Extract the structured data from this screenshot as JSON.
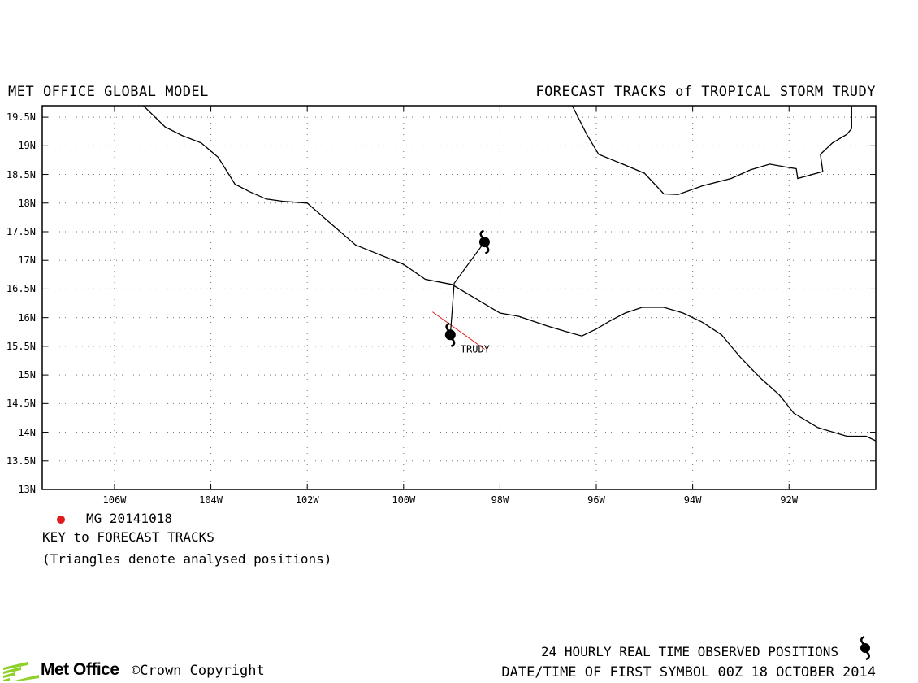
{
  "header": {
    "left": "MET OFFICE GLOBAL MODEL",
    "right": "FORECAST TRACKS of TROPICAL STORM TRUDY"
  },
  "chart_data": {
    "type": "map",
    "lon_range": [
      -107.5,
      -90.2
    ],
    "lat_range": [
      13,
      19.7
    ],
    "lat_ticks": [
      "19.5N",
      "19N",
      "18.5N",
      "18N",
      "17.5N",
      "17N",
      "16.5N",
      "16N",
      "15.5N",
      "15N",
      "14.5N",
      "14N",
      "13.5N",
      "13N"
    ],
    "lat_values": [
      19.5,
      19,
      18.5,
      18,
      17.5,
      17,
      16.5,
      16,
      15.5,
      15,
      14.5,
      14,
      13.5,
      13
    ],
    "lon_ticks": [
      "106W",
      "104W",
      "102W",
      "100W",
      "98W",
      "96W",
      "94W",
      "92W"
    ],
    "lon_values": [
      -106,
      -104,
      -102,
      -100,
      -98,
      -96,
      -94,
      -92
    ],
    "grid": true,
    "observed_track": [
      {
        "lon": -99.03,
        "lat": 15.7
      },
      {
        "lon": -98.95,
        "lat": 16.6
      },
      {
        "lon": -98.32,
        "lat": 17.32
      }
    ],
    "forecast_track": {
      "name": "MG 20141018",
      "color": "#e01a1a",
      "points": [
        {
          "lon": -99.4,
          "lat": 16.1
        },
        {
          "lon": -98.32,
          "lat": 15.45
        }
      ]
    },
    "storm_label": "TRUDY",
    "storm_label_pos": {
      "lon": -98.82,
      "lat": 15.45
    }
  },
  "coastlines": {
    "pacific": [
      [
        -105.4,
        19.7
      ],
      [
        -104.95,
        19.33
      ],
      [
        -104.6,
        19.18
      ],
      [
        -104.2,
        19.05
      ],
      [
        -103.85,
        18.8
      ],
      [
        -103.5,
        18.33
      ],
      [
        -103.2,
        18.2
      ],
      [
        -102.85,
        18.07
      ],
      [
        -102.5,
        18.03
      ],
      [
        -102.0,
        18.0
      ],
      [
        -101.0,
        17.27
      ],
      [
        -100.5,
        17.1
      ],
      [
        -100.0,
        16.93
      ],
      [
        -99.55,
        16.67
      ],
      [
        -99.0,
        16.58
      ],
      [
        -98.5,
        16.33
      ],
      [
        -98.0,
        16.08
      ],
      [
        -97.6,
        16.02
      ],
      [
        -97.0,
        15.85
      ],
      [
        -96.6,
        15.75
      ],
      [
        -96.3,
        15.68
      ],
      [
        -96.0,
        15.8
      ],
      [
        -95.7,
        15.95
      ],
      [
        -95.4,
        16.08
      ],
      [
        -95.05,
        16.18
      ],
      [
        -94.6,
        16.18
      ],
      [
        -94.2,
        16.08
      ],
      [
        -93.8,
        15.92
      ],
      [
        -93.4,
        15.7
      ],
      [
        -93.0,
        15.3
      ],
      [
        -92.6,
        14.95
      ],
      [
        -92.2,
        14.65
      ],
      [
        -91.9,
        14.33
      ],
      [
        -91.4,
        14.08
      ],
      [
        -90.8,
        13.93
      ],
      [
        -90.4,
        13.93
      ],
      [
        -90.2,
        13.85
      ]
    ],
    "gulf": [
      [
        -96.5,
        19.7
      ],
      [
        -96.2,
        19.2
      ],
      [
        -95.95,
        18.85
      ],
      [
        -95.45,
        18.68
      ],
      [
        -95.0,
        18.52
      ],
      [
        -94.6,
        18.16
      ],
      [
        -94.3,
        18.15
      ],
      [
        -93.8,
        18.3
      ],
      [
        -93.2,
        18.43
      ],
      [
        -92.8,
        18.58
      ],
      [
        -92.4,
        18.68
      ],
      [
        -92.0,
        18.62
      ],
      [
        -91.85,
        18.6
      ],
      [
        -91.82,
        18.43
      ],
      [
        -91.3,
        18.55
      ],
      [
        -91.35,
        18.85
      ],
      [
        -91.1,
        19.05
      ],
      [
        -90.8,
        19.2
      ],
      [
        -90.7,
        19.3
      ],
      [
        -90.7,
        19.7
      ]
    ]
  },
  "legend": {
    "entry_label": "MG 20141018",
    "key_title": "KEY to FORECAST TRACKS",
    "key_note": "(Triangles denote analysed positions)"
  },
  "footer": {
    "observed_label": "24 HOURLY REAL TIME OBSERVED POSITIONS",
    "first_symbol": "DATE/TIME OF FIRST SYMBOL 00Z 18 OCTOBER 2014",
    "logo_text": "Met Office",
    "copyright": "©Crown Copyright"
  },
  "icons": {
    "storm_symbol": "tropical-storm-icon"
  }
}
